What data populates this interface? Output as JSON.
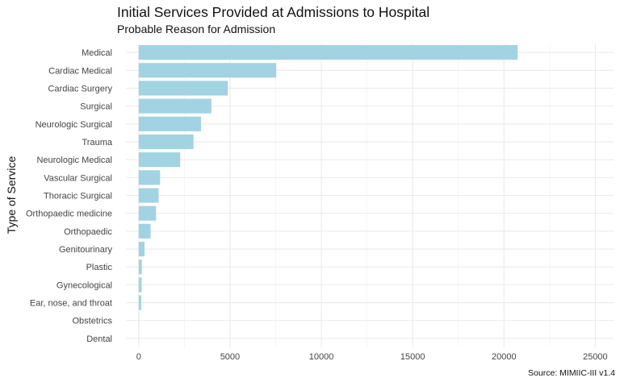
{
  "chart_data": {
    "type": "bar",
    "orientation": "horizontal",
    "title": "Initial Services Provided at Admissions to Hospital",
    "subtitle": "Probable Reason for Admission",
    "xlabel": "",
    "ylabel": "Type of Service",
    "caption": "Source: MIMIIC-III v1.4",
    "categories": [
      "Medical",
      "Cardiac Medical",
      "Cardiac Surgery",
      "Surgical",
      "Neurologic Surgical",
      "Trauma",
      "Neurologic Medical",
      "Vascular Surgical",
      "Thoracic Surgical",
      "Orthopaedic medicine",
      "Orthopaedic",
      "Genitourinary",
      "Plastic",
      "Gynecological",
      "Ear, nose, and throat",
      "Obstetrics",
      "Dental"
    ],
    "values": [
      20750,
      7530,
      4880,
      3980,
      3410,
      3000,
      2270,
      1170,
      1090,
      950,
      650,
      320,
      170,
      160,
      140,
      10,
      5
    ],
    "xlim": [
      -700,
      26000
    ],
    "xticks": [
      0,
      5000,
      10000,
      15000,
      20000,
      25000
    ],
    "grid": true,
    "legend": "none",
    "colors": {
      "bar": "#a2d3e3",
      "grid": "#ebebeb"
    }
  }
}
